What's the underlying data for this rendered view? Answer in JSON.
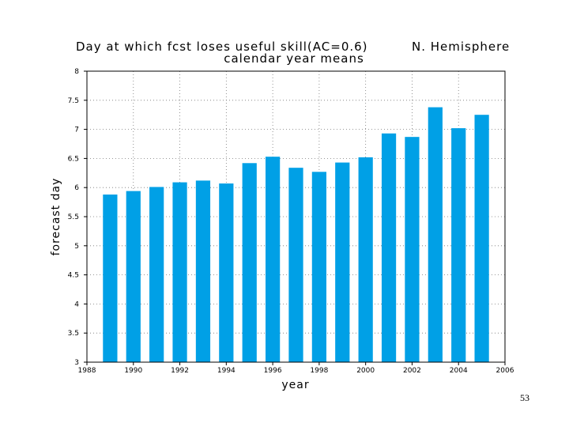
{
  "chart_data": {
    "type": "bar",
    "title": "Day at which fcst loses useful skill(AC=0.6)",
    "title_region": "N. Hemisphere",
    "subtitle": "calendar year means",
    "xlabel": "year",
    "ylabel": "forecast day",
    "xlim": [
      1988,
      2006
    ],
    "ylim": [
      3,
      8
    ],
    "x_ticks": [
      "1988",
      "1990",
      "1992",
      "1994",
      "1996",
      "1998",
      "2000",
      "2002",
      "2004",
      "2006"
    ],
    "y_ticks": [
      "3",
      "3.5",
      "4",
      "4.5",
      "5",
      "5.5",
      "6",
      "6.5",
      "7",
      "7.5",
      "8"
    ],
    "grid": true,
    "bar_color": "#00a0e6",
    "x": [
      1989,
      1990,
      1991,
      1992,
      1993,
      1994,
      1995,
      1996,
      1997,
      1998,
      1999,
      2000,
      2001,
      2002,
      2003,
      2004,
      2005
    ],
    "values": [
      5.88,
      5.94,
      6.01,
      6.09,
      6.12,
      6.07,
      6.42,
      6.53,
      6.34,
      6.27,
      6.43,
      6.52,
      6.93,
      6.87,
      7.38,
      7.02,
      7.25
    ]
  },
  "page_number": "53"
}
